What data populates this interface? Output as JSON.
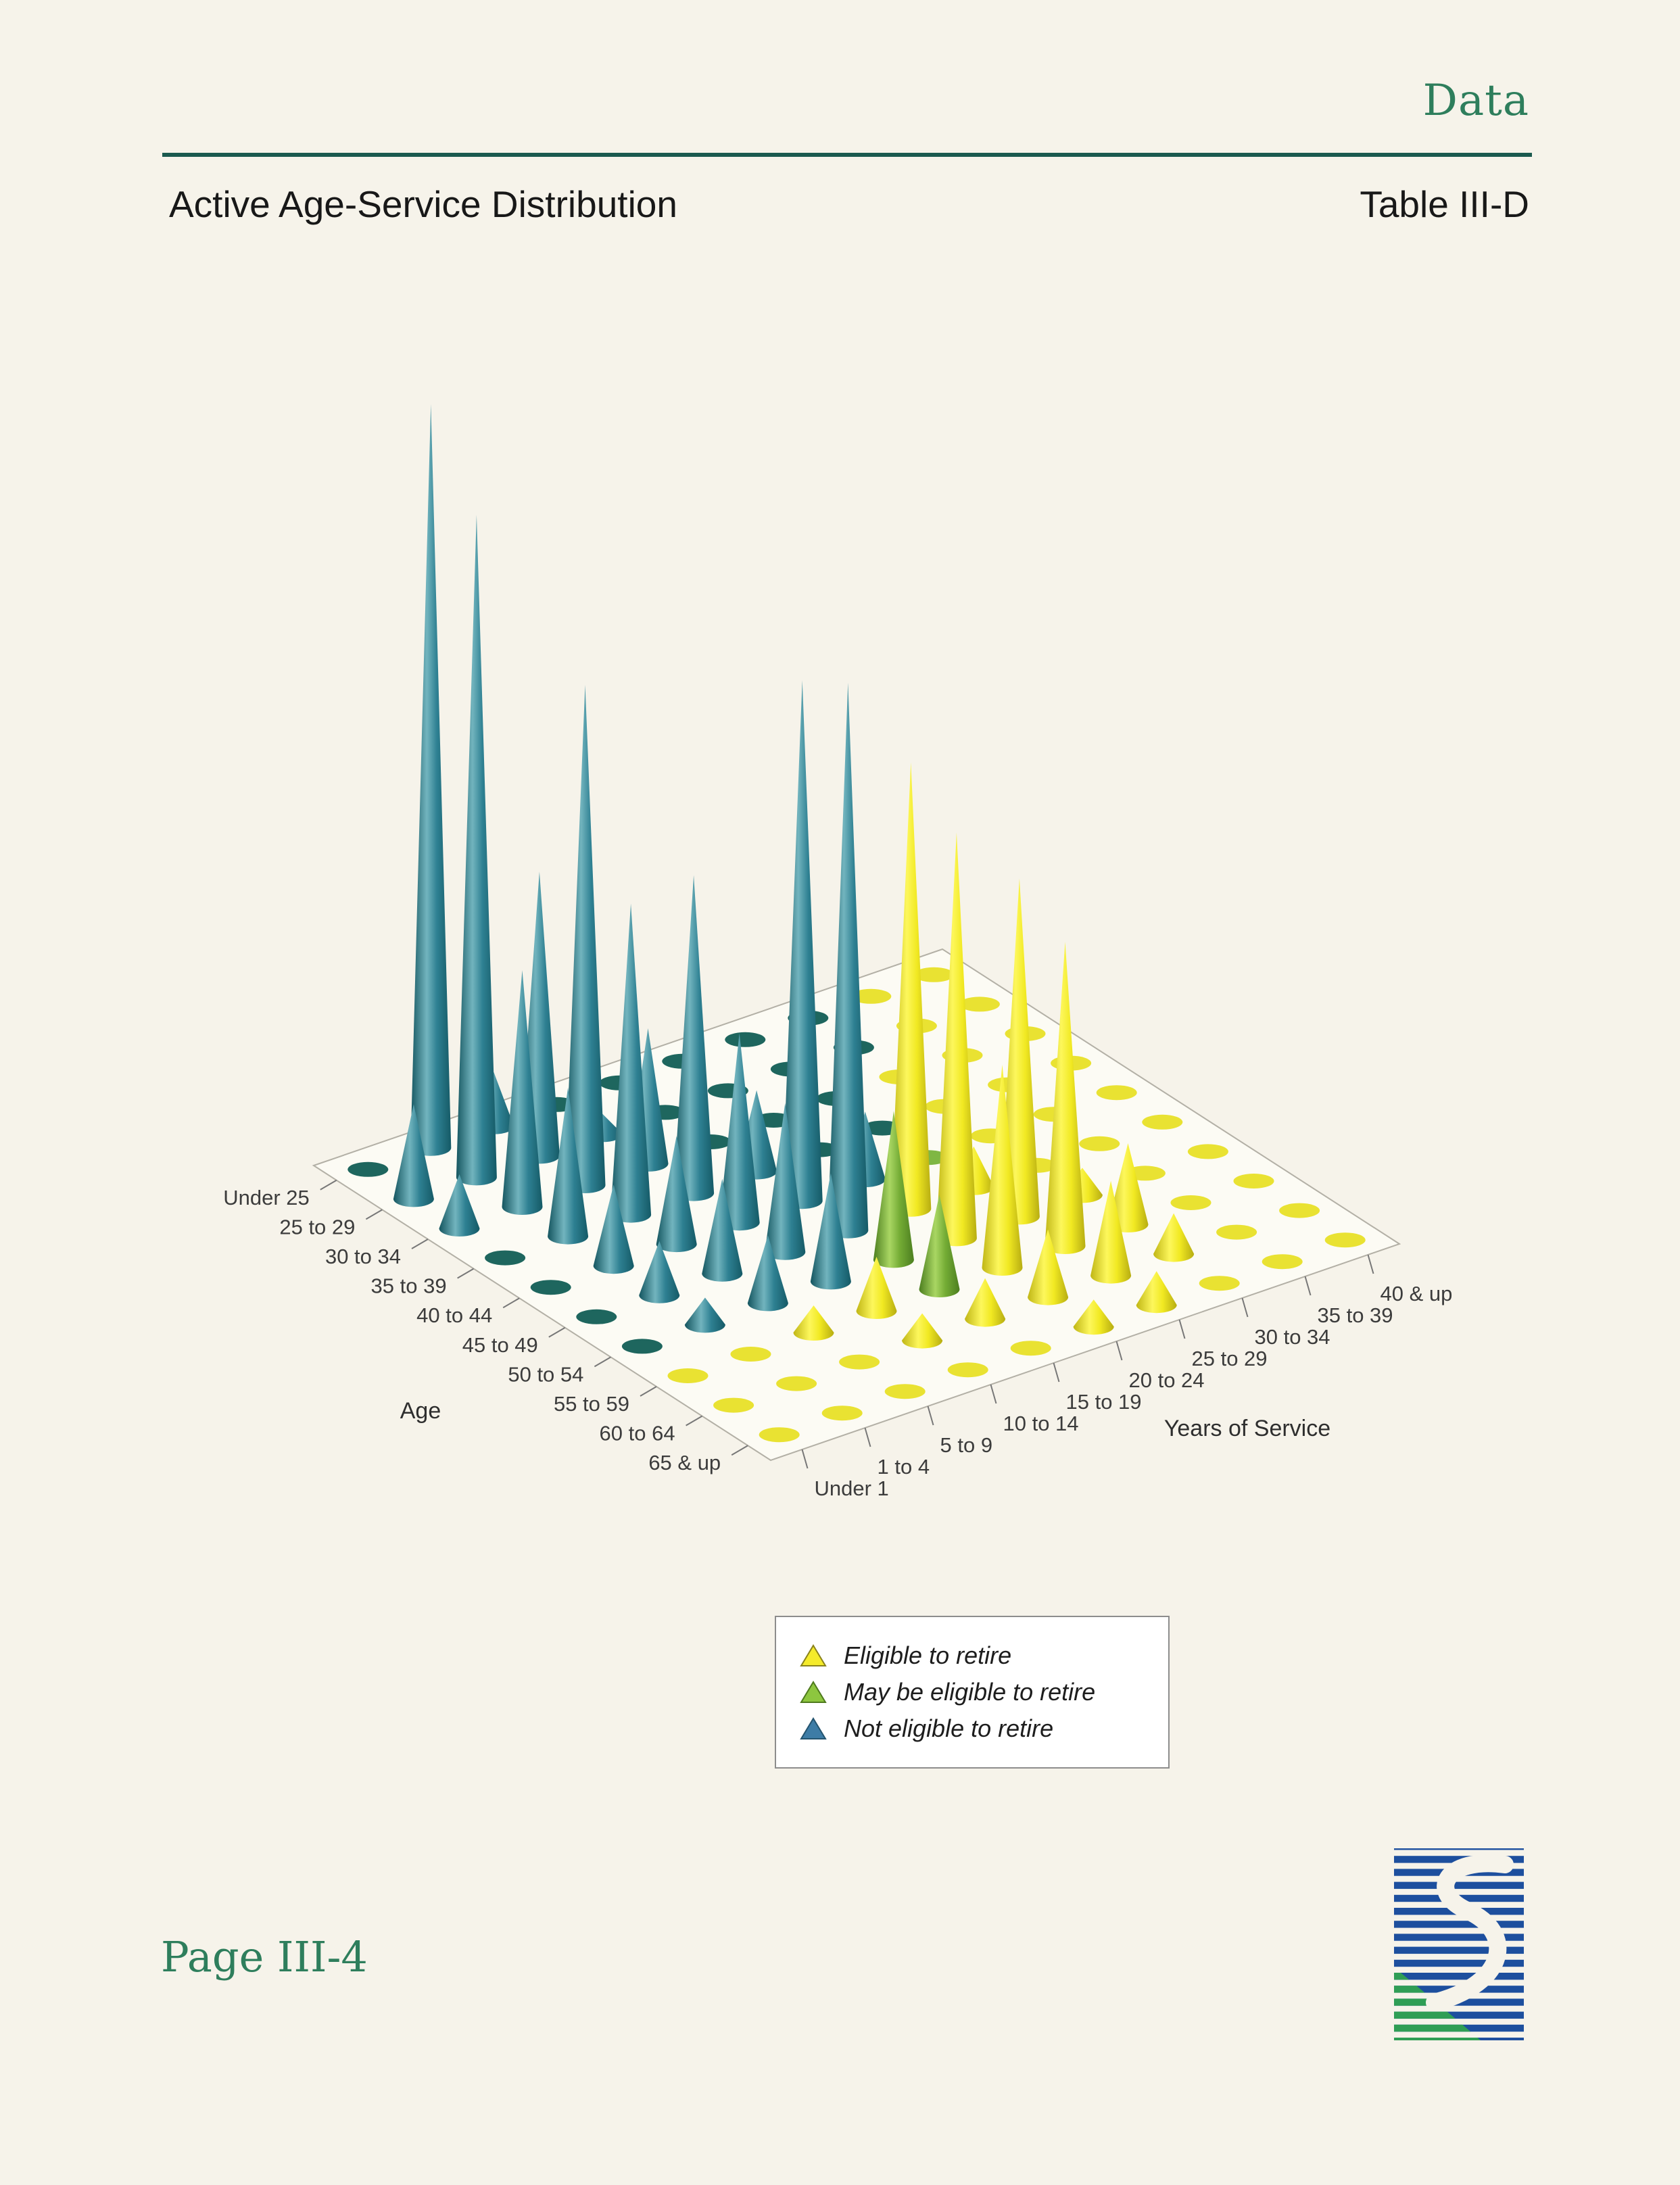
{
  "page": {
    "section_label": "Data",
    "title": "Active Age-Service Distribution",
    "table_ref": "Table III-D",
    "footer": "Page III-4"
  },
  "legend": {
    "items": [
      {
        "label": "Eligible to retire",
        "color": "#f5eb2a",
        "border": "#8a831c"
      },
      {
        "label": "May be eligible to retire",
        "color": "#8dc63f",
        "border": "#4e7a1d"
      },
      {
        "label": "Not eligible to retire",
        "color": "#3d7ca6",
        "border": "#24546f"
      }
    ]
  },
  "chart_data": {
    "type": "3d-cone",
    "title": "Active Age-Service Distribution",
    "age_axis_label": "Age",
    "service_axis_label": "Years of Service",
    "age_categories": [
      "Under 25",
      "25 to 29",
      "30 to 34",
      "35 to 39",
      "40 to 44",
      "45 to 49",
      "50 to 54",
      "55 to 59",
      "60 to 64",
      "65 & up"
    ],
    "service_categories": [
      "Under 1",
      "1 to 4",
      "5 to 9",
      "10 to 14",
      "15 to 19",
      "20 to 24",
      "25 to 29",
      "30 to 34",
      "35 to 39",
      "40 & up"
    ],
    "values": [
      [
        2,
        110,
        8,
        0,
        0,
        0,
        0,
        0,
        0,
        0
      ],
      [
        14,
        98,
        42,
        3,
        0,
        0,
        0,
        0,
        0,
        0
      ],
      [
        8,
        35,
        74,
        20,
        2,
        0,
        0,
        0,
        0,
        0
      ],
      [
        2,
        22,
        46,
        47,
        12,
        1,
        0,
        0,
        0,
        0
      ],
      [
        2,
        12,
        16,
        28,
        77,
        10,
        1,
        0,
        0,
        0
      ],
      [
        2,
        8,
        14,
        22,
        81,
        66,
        6,
        1,
        0,
        0
      ],
      [
        2,
        4,
        10,
        16,
        22,
        60,
        50,
        4,
        1,
        0
      ],
      [
        2,
        2,
        4,
        8,
        14,
        30,
        45,
        12,
        1,
        0
      ],
      [
        2,
        2,
        2,
        4,
        6,
        10,
        14,
        6,
        1,
        0
      ],
      [
        1,
        1,
        1,
        2,
        2,
        4,
        5,
        2,
        1,
        0
      ]
    ],
    "category_codes": [
      "NNNNNNNNEE",
      "NNNNNNNNEE",
      "NNNNNNNEEE",
      "NNNNNNNEEE",
      "NNNNNNMEEE",
      "NNNNNEEEEE",
      "NNNNMEEEEE",
      "EEEEMEEEEE",
      "EEEEEEEEEE",
      "EEEEEEEEEE"
    ],
    "category_meaning": {
      "E": "Eligible to retire",
      "M": "May be eligible to retire",
      "N": "Not eligible to retire"
    },
    "value_range": [
      0,
      110
    ],
    "colors": {
      "eligible": "#f2e72b",
      "may_be": "#8dc63f",
      "not_eligible": "#2e8092",
      "eligible_disc": "#e9e232",
      "may_be_disc": "#7fb743",
      "not_eligible_disc": "#1e665e"
    }
  }
}
